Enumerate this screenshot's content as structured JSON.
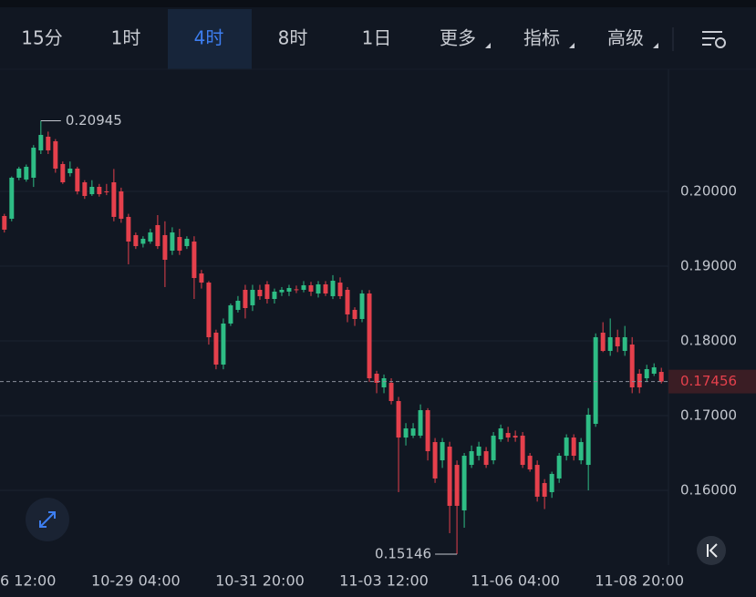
{
  "toolbar": {
    "tabs": [
      "15分",
      "1时",
      "4时",
      "8时",
      "1日",
      "更多",
      "指标",
      "高级"
    ],
    "active_tab": 2,
    "dropdown_tabs": [
      5,
      6,
      7
    ]
  },
  "chart_data": {
    "type": "candlestick",
    "up_color": "#2ebd85",
    "down_color": "#e5404c",
    "open": [
      0.19671,
      0.19634,
      0.20183,
      0.20159,
      0.20183,
      0.20549,
      0.20732,
      0.20671,
      0.20366,
      0.20244,
      0.20305,
      0.20122,
      0.19963,
      0.20061,
      0.2,
      0.20122,
      0.2,
      0.19659,
      0.19415,
      0.193,
      0.19329,
      0.19549,
      0.19415,
      0.19207,
      0.1939,
      0.19268,
      0.19329,
      0.18902,
      0.1878,
      0.1811,
      0.17683,
      0.18232,
      0.18415,
      0.18683,
      0.18476,
      0.18683,
      0.18756,
      0.18561,
      0.1865,
      0.18659,
      0.1869,
      0.18683,
      0.18744,
      0.18634,
      0.18756,
      0.18598,
      0.1878,
      0.18683,
      0.18415,
      0.18293,
      0.18634,
      0.17561,
      0.17378,
      0.17439,
      0.17195,
      0.16707,
      0.16732,
      0.16732,
      0.17073,
      0.16646,
      0.16402,
      0.16585,
      0.16341,
      0.15732,
      0.16341,
      0.16463,
      0.16524,
      0.16402,
      0.16683,
      0.16768,
      0.1673,
      0.16732,
      0.16463,
      0.16341,
      0.16098,
      0.15976,
      0.16159,
      0.16463,
      0.16707,
      0.16402,
      0.16341,
      0.1689,
      0.1811,
      0.17866,
      0.18049,
      0.17866,
      0.17951,
      0.17561,
      0.175,
      0.17561,
      0.17585
    ],
    "high": [
      0.197,
      0.202,
      0.2033,
      0.2036,
      0.2062,
      0.20945,
      0.208,
      0.207,
      0.204,
      0.204,
      0.2033,
      0.2015,
      0.2015,
      0.201,
      0.201,
      0.203,
      0.2005,
      0.197,
      0.1945,
      0.194,
      0.195,
      0.19683,
      0.196,
      0.1952,
      0.195,
      0.194,
      0.194,
      0.1895,
      0.188,
      0.1815,
      0.183,
      0.185,
      0.186,
      0.1875,
      0.1875,
      0.1875,
      0.188,
      0.187,
      0.1872,
      0.1875,
      0.1874,
      0.188,
      0.1879,
      0.188,
      0.188,
      0.1888,
      0.1885,
      0.1872,
      0.1845,
      0.1868,
      0.1868,
      0.176,
      0.1755,
      0.175,
      0.1725,
      0.169,
      0.169,
      0.1715,
      0.171,
      0.167,
      0.167,
      0.1665,
      0.164,
      0.165,
      0.166,
      0.1665,
      0.1658,
      0.1678,
      0.1688,
      0.1685,
      0.168,
      0.1678,
      0.165,
      0.164,
      0.1615,
      0.1625,
      0.165,
      0.1675,
      0.1675,
      0.167,
      0.171,
      0.181,
      0.1825,
      0.183,
      0.1815,
      0.182,
      0.1805,
      0.1762,
      0.1768,
      0.177,
      0.1764
    ],
    "low": [
      0.1945,
      0.196,
      0.2015,
      0.2013,
      0.2006,
      0.205,
      0.205,
      0.2025,
      0.201,
      0.202,
      0.1996,
      0.199,
      0.1994,
      0.1993,
      0.1995,
      0.196,
      0.1958,
      0.19024,
      0.1923,
      0.1925,
      0.193,
      0.1923,
      0.1872,
      0.1915,
      0.1915,
      0.1923,
      0.18561,
      0.187,
      0.1795,
      0.1762,
      0.1762,
      0.182,
      0.1838,
      0.183,
      0.184,
      0.1855,
      0.185,
      0.185,
      0.186,
      0.186,
      0.1864,
      0.1865,
      0.186,
      0.1858,
      0.186,
      0.1856,
      0.1856,
      0.1825,
      0.182,
      0.1825,
      0.1745,
      0.173,
      0.173,
      0.1715,
      0.15976,
      0.166,
      0.167,
      0.167,
      0.164,
      0.161,
      0.163,
      0.15427,
      0.15146,
      0.155,
      0.163,
      0.164,
      0.163,
      0.1635,
      0.1665,
      0.1665,
      0.1665,
      0.163,
      0.1625,
      0.1585,
      0.1575,
      0.159,
      0.161,
      0.164,
      0.164,
      0.1635,
      0.16,
      0.1685,
      0.1785,
      0.178,
      0.1785,
      0.178,
      0.173,
      0.173,
      0.1745,
      0.1753,
      0.1743
    ],
    "close": [
      0.19488,
      0.20183,
      0.20305,
      0.20329,
      0.20585,
      0.20756,
      0.20549,
      0.20305,
      0.20122,
      0.20305,
      0.2,
      0.19939,
      0.20061,
      0.19963,
      0.1999,
      0.19659,
      0.19634,
      0.19329,
      0.19268,
      0.19366,
      0.19451,
      0.19268,
      0.19085,
      0.19451,
      0.19207,
      0.19366,
      0.18841,
      0.1878,
      0.18049,
      0.17683,
      0.18232,
      0.18476,
      0.18537,
      0.18439,
      0.18683,
      0.18598,
      0.18561,
      0.18659,
      0.18683,
      0.18707,
      0.18683,
      0.18744,
      0.18659,
      0.18756,
      0.18634,
      0.18805,
      0.18598,
      0.18354,
      0.18293,
      0.18634,
      0.175,
      0.17439,
      0.175,
      0.17195,
      0.16707,
      0.16829,
      0.16829,
      0.17073,
      0.16524,
      0.16159,
      0.16646,
      0.15793,
      0.15793,
      0.16463,
      0.16524,
      0.16585,
      0.16341,
      0.16732,
      0.16829,
      0.16707,
      0.16707,
      0.16341,
      0.1628,
      0.15915,
      0.15915,
      0.1622,
      0.16463,
      0.16707,
      0.16463,
      0.16646,
      0.17012,
      0.18049,
      0.17866,
      0.18049,
      0.17927,
      0.18049,
      0.17378,
      0.17378,
      0.17622,
      0.17646,
      0.17456
    ],
    "ylim": [
      0.15,
      0.216
    ],
    "yticks": [
      {
        "value": 0.16,
        "label": "0.16000"
      },
      {
        "value": 0.17,
        "label": "0.17000"
      },
      {
        "value": 0.18,
        "label": "0.18000"
      },
      {
        "value": 0.19,
        "label": "0.19000"
      },
      {
        "value": 0.2,
        "label": "0.20000"
      }
    ],
    "xlim": [
      -0.6,
      90.6
    ],
    "xticks": [
      {
        "value": 1,
        "label": "6 12:00"
      },
      {
        "value": 18,
        "label": "10-29 04:00"
      },
      {
        "value": 35,
        "label": "10-31 20:00"
      },
      {
        "value": 52,
        "label": "11-03 12:00"
      },
      {
        "value": 70,
        "label": "11-06 04:00"
      },
      {
        "value": 87,
        "label": "11-08 20:00"
      }
    ],
    "grid": true,
    "max_label": 0.20945,
    "min_label": 0.15146,
    "last_price": 0.17456
  }
}
